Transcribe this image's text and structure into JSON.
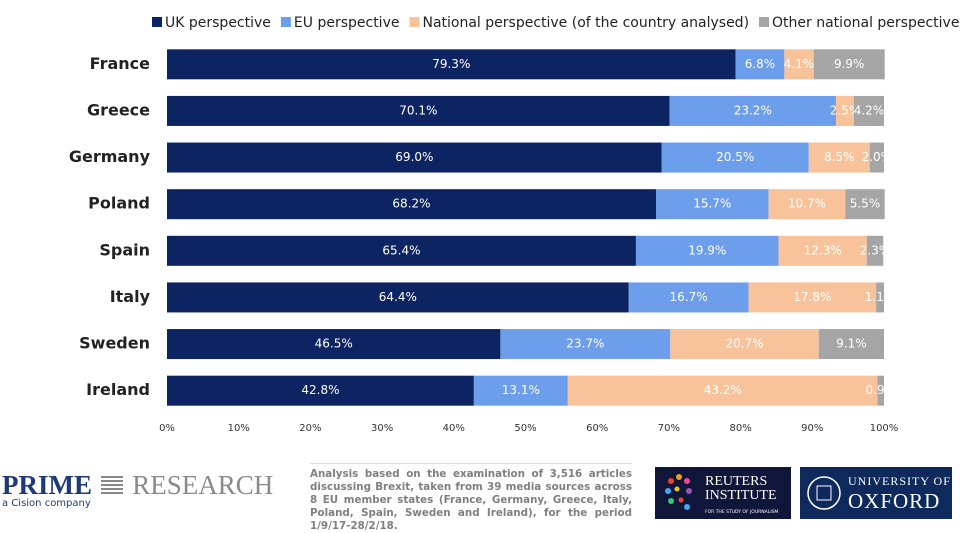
{
  "chart_data": {
    "type": "stacked-barh",
    "categories": [
      "France",
      "Greece",
      "Germany",
      "Poland",
      "Spain",
      "Italy",
      "Sweden",
      "Ireland"
    ],
    "series": [
      {
        "name": "UK perspective",
        "color": "#0c2461",
        "values": [
          79.3,
          70.1,
          69.0,
          68.2,
          65.4,
          64.4,
          46.5,
          42.8
        ],
        "value_labels": [
          "79.3%",
          "70.1%",
          "69.0%",
          "68.2%",
          "65.4%",
          "64.4%",
          "46.5%",
          "42.8%"
        ]
      },
      {
        "name": "EU perspective",
        "color": "#6d9eeb",
        "values": [
          6.8,
          23.2,
          20.5,
          15.7,
          19.9,
          16.7,
          23.7,
          13.1
        ],
        "value_labels": [
          "6.8%",
          "23.2%",
          "20.5%",
          "15.7%",
          "19.9%",
          "16.7%",
          "23.7%",
          "13.1%"
        ]
      },
      {
        "name": "National perspective (of the country analysed)",
        "color": "#f8c39a",
        "values": [
          4.1,
          2.5,
          8.5,
          10.7,
          12.3,
          17.8,
          20.7,
          43.2
        ],
        "value_labels": [
          "4.1%",
          "2.5%",
          "8.5%",
          "10.7%",
          "12.3%",
          "17.8%",
          "20.7%",
          "43.2%"
        ]
      },
      {
        "name": "Other national perspective",
        "color": "#a5a5a5",
        "values": [
          9.9,
          4.2,
          2.0,
          5.5,
          2.3,
          1.1,
          9.1,
          0.9
        ],
        "value_labels": [
          "9.9%",
          "4.2%",
          "2.0%",
          "5.5%",
          "2.3%",
          "1.1%",
          "9.1%",
          "0.9%"
        ]
      }
    ],
    "xlim": [
      0,
      100
    ],
    "xticks": [
      {
        "value": 0,
        "label": "0%"
      },
      {
        "value": 10,
        "label": "10%"
      },
      {
        "value": 20,
        "label": "20%"
      },
      {
        "value": 30,
        "label": "30%"
      },
      {
        "value": 40,
        "label": "40%"
      },
      {
        "value": 50,
        "label": "50%"
      },
      {
        "value": 60,
        "label": "60%"
      },
      {
        "value": 70,
        "label": "70%"
      },
      {
        "value": 80,
        "label": "80%"
      },
      {
        "value": 90,
        "label": "90%"
      },
      {
        "value": 100,
        "label": "100%"
      }
    ],
    "grid": false,
    "legend": "top"
  },
  "footer": {
    "prime": "PRIME",
    "research": "RESEARCH",
    "cision": "a Cision company",
    "analysis": "Analysis based on the examination of 3,516 articles discussing Brexit, taken from 39 media sources across 8 EU member states (France, Germany, Greece, Italy, Poland, Spain, Sweden and Ireland), for the period 1/9/17-28/2/18.",
    "reuters": "REUTERS",
    "institute": "INSTITUTE",
    "journalism": "FOR THE STUDY OF JOURNALISM",
    "university": "UNIVERSITY OF",
    "oxford": "OXFORD"
  }
}
